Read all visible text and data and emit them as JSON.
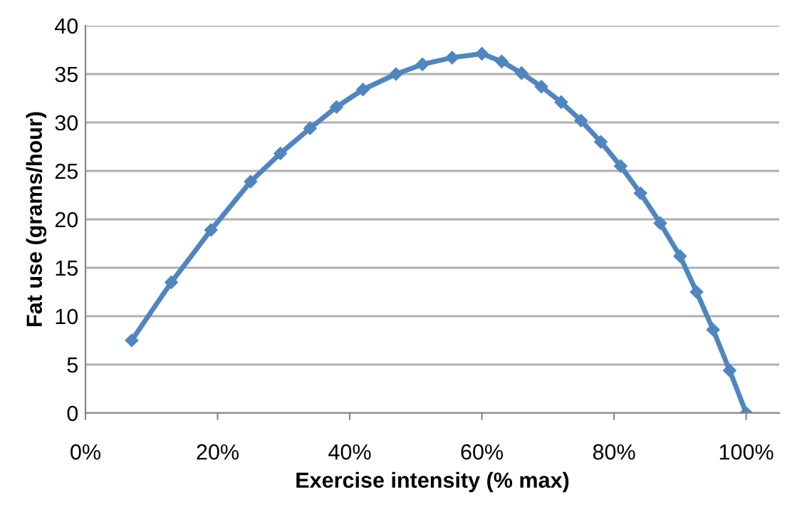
{
  "chart_data": {
    "type": "line",
    "xlabel": "Exercise intensity (% max)",
    "ylabel": "Fat use (grams/hour)",
    "x": [
      7,
      13,
      19,
      25,
      29.5,
      34,
      38,
      42,
      47,
      51,
      55.5,
      60,
      63,
      66,
      69,
      72,
      75,
      78,
      81,
      84,
      87,
      90,
      92.5,
      95,
      97.5,
      100
    ],
    "series": [
      {
        "color": "#4f86c0",
        "values": [
          7.5,
          13.5,
          18.9,
          23.9,
          26.8,
          29.4,
          31.6,
          33.4,
          35.0,
          36.0,
          36.7,
          37.1,
          36.3,
          35.1,
          33.7,
          32.1,
          30.2,
          28.0,
          25.5,
          22.7,
          19.6,
          16.2,
          12.5,
          8.6,
          4.4,
          0
        ]
      }
    ],
    "xlim": [
      0,
      105
    ],
    "xticks": [
      {
        "value": 0,
        "label": "0%"
      },
      {
        "value": 20,
        "label": "20%"
      },
      {
        "value": 40,
        "label": "40%"
      },
      {
        "value": 60,
        "label": "60%"
      },
      {
        "value": 80,
        "label": "80%"
      },
      {
        "value": 100,
        "label": "100%"
      }
    ],
    "ylim": [
      0,
      40
    ],
    "yticks": [
      0,
      5,
      10,
      15,
      20,
      25,
      30,
      35,
      40
    ],
    "grid": "y",
    "marker": "diamond",
    "line_style": "solid",
    "legend": false
  }
}
